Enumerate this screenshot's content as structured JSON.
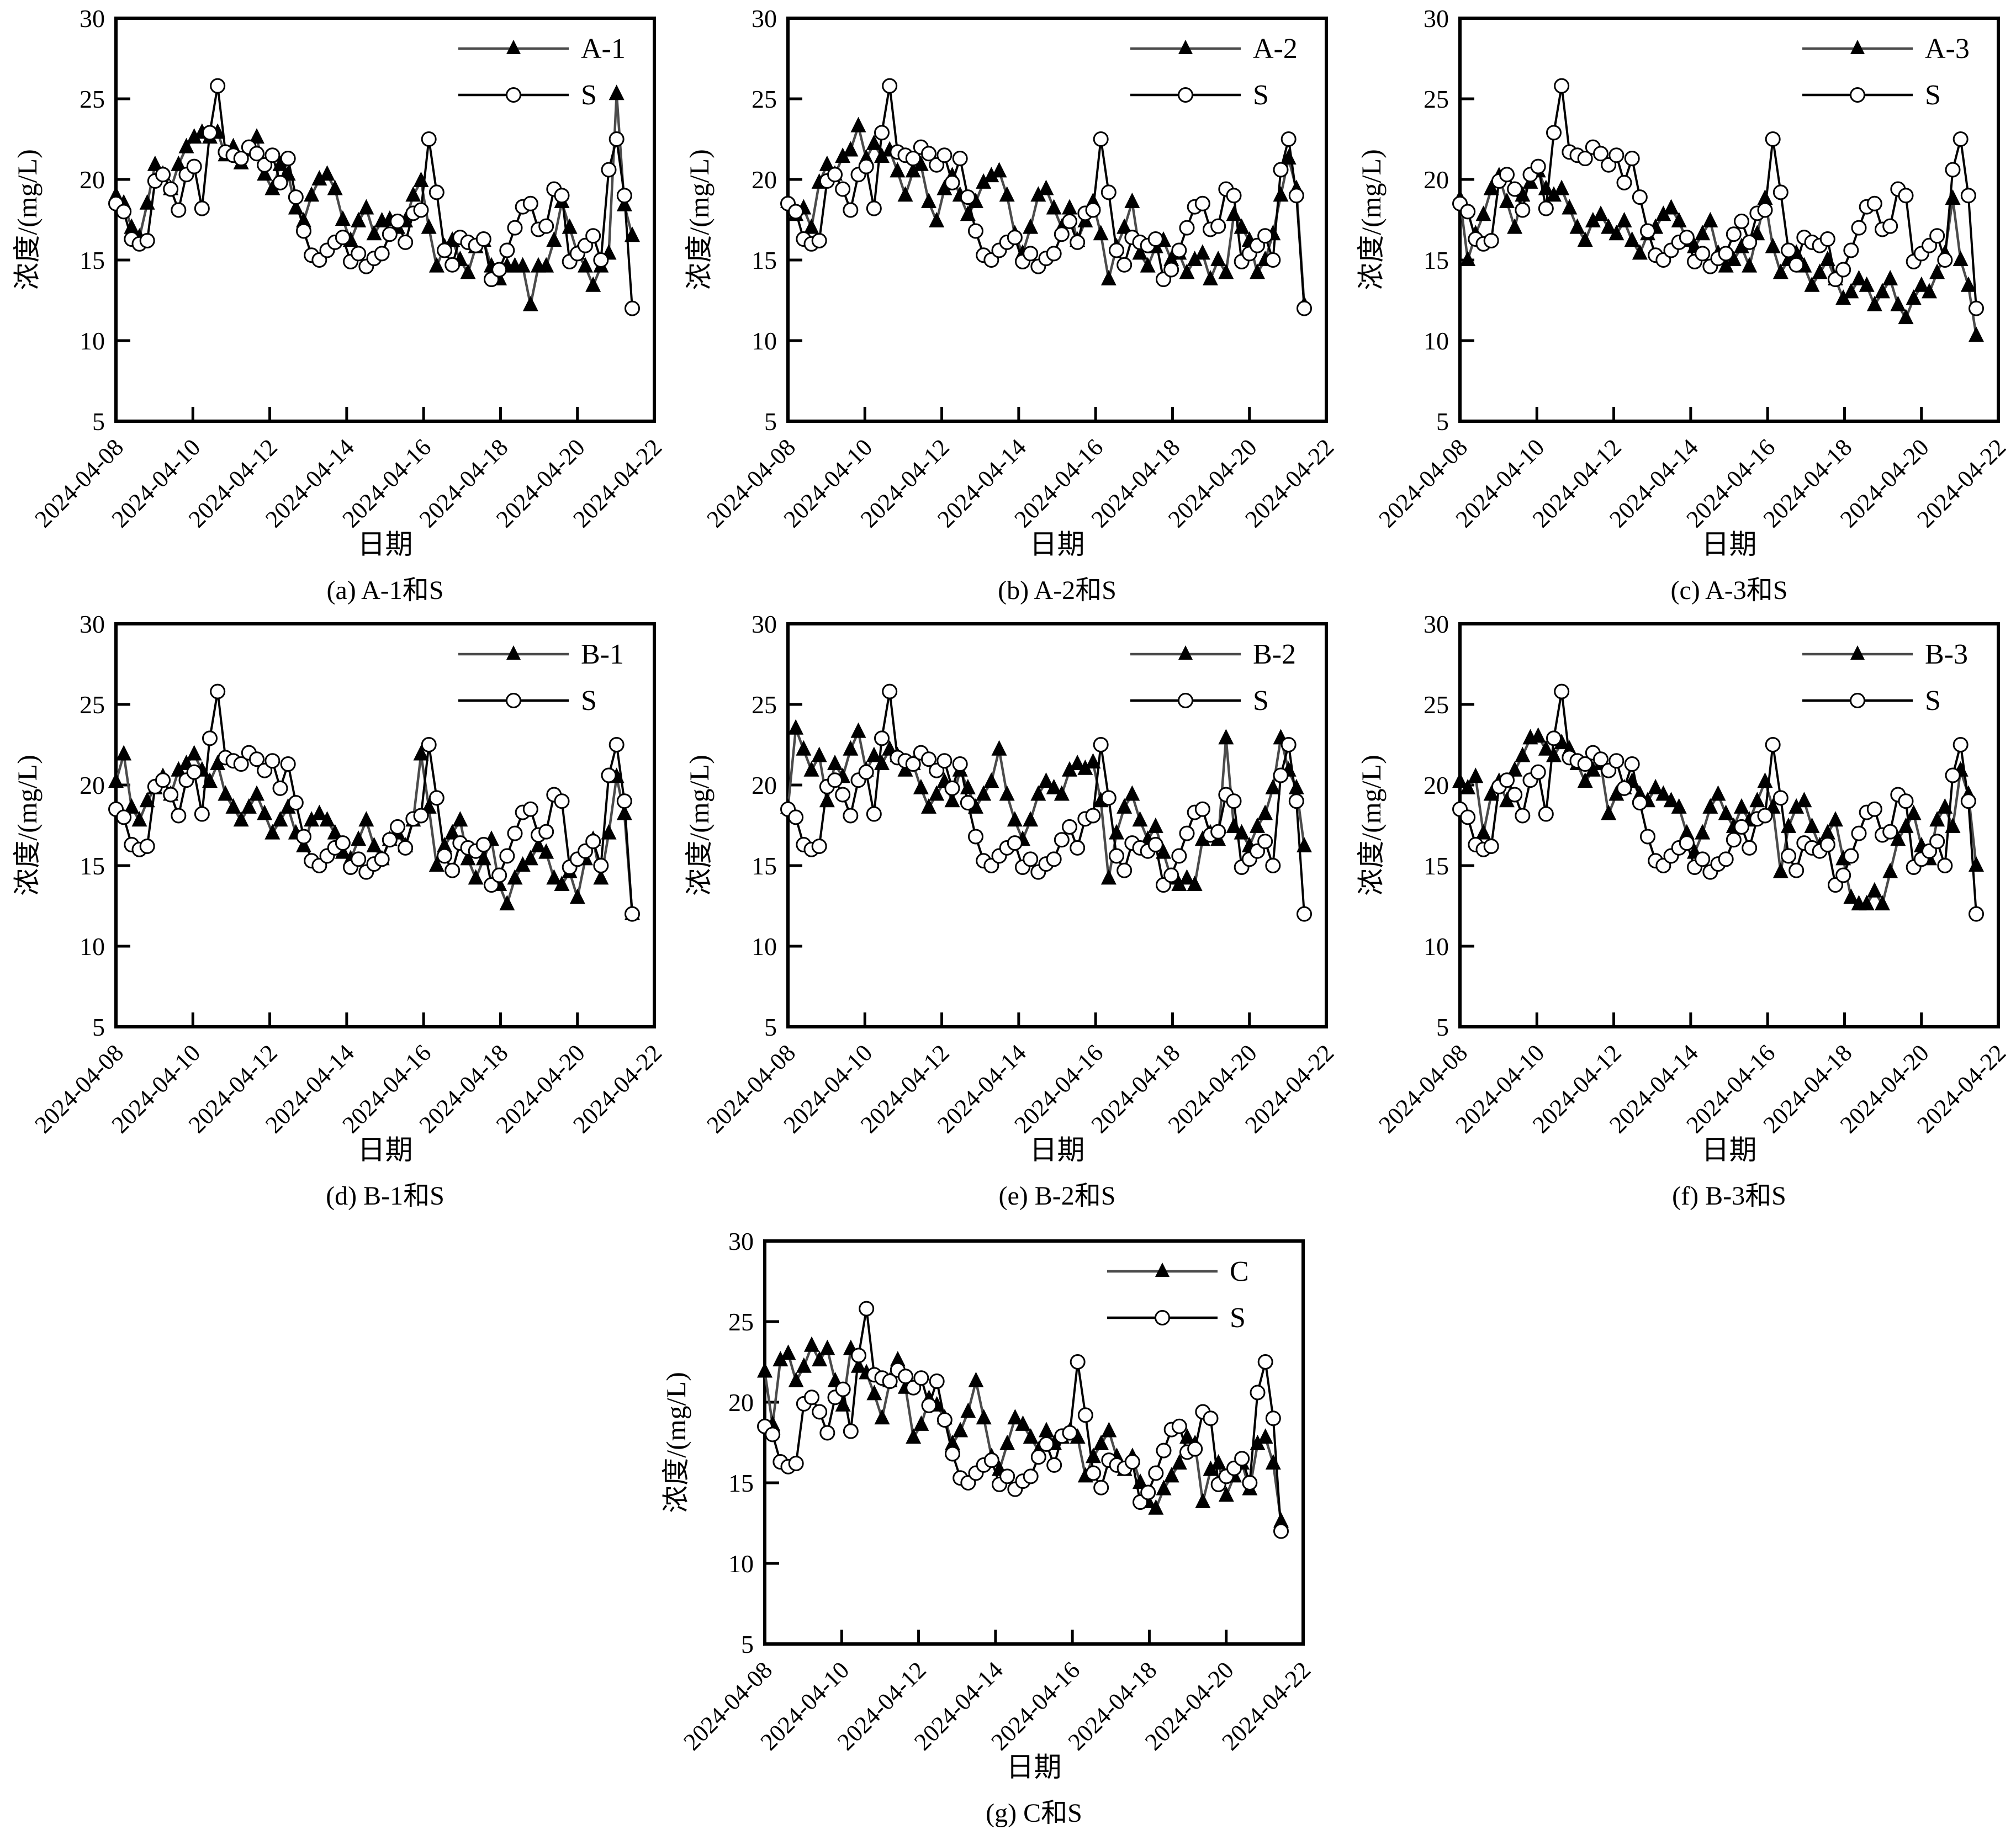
{
  "figure": {
    "background": "#ffffff",
    "ylabel": "浓度/(mg/L)",
    "xlabel": "日期",
    "ylim": [
      5,
      30
    ],
    "y_ticks": [
      30,
      25,
      20,
      15,
      10,
      5
    ],
    "x_tick_labels": [
      "2024-04-08",
      "2024-04-10",
      "2024-04-12",
      "2024-04-14",
      "2024-04-16",
      "2024-04-18",
      "2024-04-20",
      "2024-04-22"
    ],
    "colors": {
      "named_series_line": "#4b4b4b",
      "named_series_marker": "#000000",
      "s_series_line": "#000000",
      "s_series_marker_fill": "#ffffff",
      "s_series_marker_stroke": "#000000",
      "axis": "#000000"
    },
    "legend_position": "top-right",
    "grid": false,
    "shared_series_S": {
      "name": "S",
      "marker": "open-circle",
      "values": [
        18.5,
        18.0,
        16.3,
        16.0,
        16.2,
        19.9,
        20.3,
        19.4,
        18.1,
        20.3,
        20.8,
        18.2,
        22.9,
        25.8,
        21.7,
        21.5,
        21.3,
        22.0,
        21.6,
        20.9,
        21.5,
        19.8,
        21.3,
        18.9,
        16.8,
        15.3,
        15.0,
        15.6,
        16.1,
        16.4,
        14.9,
        15.4,
        14.6,
        15.1,
        15.4,
        16.6,
        17.4,
        16.1,
        17.9,
        18.1,
        22.5,
        19.2,
        15.6,
        14.7,
        16.4,
        16.1,
        15.9,
        16.3,
        13.8,
        14.4,
        15.6,
        17.0,
        18.3,
        18.5,
        16.9,
        17.1,
        19.4,
        19.0,
        14.9,
        15.4,
        15.9,
        16.5,
        15.0,
        20.6,
        22.5,
        19.0,
        12.0
      ]
    }
  },
  "chart_data": [
    {
      "id": "a",
      "type": "line",
      "caption": "(a) A-1和S",
      "xlabel": "日期",
      "ylabel": "浓度/(mg/L)",
      "ylim": [
        5,
        30
      ],
      "x_ticks": [
        "2024-04-08",
        "2024-04-10",
        "2024-04-12",
        "2024-04-14",
        "2024-04-16",
        "2024-04-18",
        "2024-04-20",
        "2024-04-22"
      ],
      "legend": [
        "A-1",
        "S"
      ],
      "series": [
        {
          "name": "A-1",
          "marker": "filled-triangle",
          "values": [
            19.0,
            18.5,
            17.0,
            16.4,
            18.5,
            20.9,
            20.3,
            19.4,
            20.9,
            22.0,
            22.6,
            22.9,
            22.6,
            22.9,
            21.5,
            22.0,
            21.0,
            21.8,
            22.6,
            20.3,
            19.4,
            20.9,
            20.3,
            18.2,
            17.4,
            19.0,
            20.0,
            20.3,
            19.4,
            17.5,
            16.2,
            17.4,
            18.2,
            16.6,
            17.4,
            17.5,
            17.0,
            17.4,
            19.0,
            19.9,
            17.0,
            14.6,
            15.8,
            16.2,
            15.0,
            14.2,
            15.8,
            16.2,
            14.6,
            13.8,
            14.6,
            14.6,
            14.6,
            12.2,
            14.6,
            14.6,
            16.2,
            18.6,
            17.0,
            15.4,
            14.6,
            13.4,
            14.6,
            15.4,
            25.3,
            18.4,
            16.5
          ]
        },
        {
          "name": "S",
          "marker": "open-circle",
          "values_from": "shared_series_S"
        }
      ]
    },
    {
      "id": "b",
      "type": "line",
      "caption": "(b) A-2和S",
      "xlabel": "日期",
      "ylabel": "浓度/(mg/L)",
      "ylim": [
        5,
        30
      ],
      "x_ticks": [
        "2024-04-08",
        "2024-04-10",
        "2024-04-12",
        "2024-04-14",
        "2024-04-16",
        "2024-04-18",
        "2024-04-20",
        "2024-04-22"
      ],
      "legend": [
        "A-2",
        "S"
      ],
      "series": [
        {
          "name": "A-2",
          "marker": "filled-triangle",
          "values": [
            18.6,
            17.8,
            18.2,
            17.0,
            19.8,
            20.9,
            20.3,
            21.4,
            21.8,
            23.3,
            21.3,
            22.2,
            21.4,
            21.8,
            20.5,
            19.0,
            20.5,
            20.9,
            18.6,
            17.4,
            19.4,
            20.2,
            19.0,
            17.8,
            18.6,
            19.8,
            20.2,
            20.5,
            19.0,
            16.6,
            15.4,
            17.0,
            19.0,
            19.4,
            18.2,
            17.0,
            18.2,
            16.2,
            17.4,
            18.6,
            16.6,
            13.8,
            15.8,
            17.0,
            18.6,
            15.4,
            14.6,
            15.8,
            16.2,
            15.0,
            15.4,
            14.2,
            15.0,
            15.4,
            13.8,
            15.0,
            14.2,
            17.8,
            17.0,
            16.2,
            14.2,
            15.0,
            16.6,
            19.0,
            21.3,
            19.4,
            12.2
          ]
        },
        {
          "name": "S",
          "marker": "open-circle",
          "values_from": "shared_series_S"
        }
      ]
    },
    {
      "id": "c",
      "type": "line",
      "caption": "(c) A-3和S",
      "xlabel": "日期",
      "ylabel": "浓度/(mg/L)",
      "ylim": [
        5,
        30
      ],
      "x_ticks": [
        "2024-04-08",
        "2024-04-10",
        "2024-04-12",
        "2024-04-14",
        "2024-04-16",
        "2024-04-18",
        "2024-04-20",
        "2024-04-22"
      ],
      "legend": [
        "A-3",
        "S"
      ],
      "series": [
        {
          "name": "A-3",
          "marker": "filled-triangle",
          "values": [
            18.8,
            15.0,
            16.6,
            17.8,
            19.4,
            20.2,
            18.6,
            17.0,
            19.0,
            19.8,
            20.5,
            19.4,
            19.0,
            19.4,
            18.2,
            17.0,
            16.2,
            17.4,
            17.8,
            17.0,
            16.6,
            17.4,
            16.2,
            15.4,
            16.6,
            17.0,
            17.8,
            18.2,
            17.4,
            16.2,
            15.8,
            16.6,
            17.4,
            15.4,
            14.6,
            15.0,
            15.8,
            14.6,
            16.6,
            18.8,
            15.8,
            14.2,
            15.0,
            15.4,
            14.6,
            13.4,
            14.2,
            15.0,
            13.8,
            12.6,
            13.0,
            13.8,
            13.4,
            12.2,
            13.0,
            13.8,
            12.2,
            11.4,
            12.6,
            13.4,
            13.0,
            14.2,
            15.4,
            18.8,
            15.0,
            13.4,
            10.3
          ]
        },
        {
          "name": "S",
          "marker": "open-circle",
          "values_from": "shared_series_S"
        }
      ]
    },
    {
      "id": "d",
      "type": "line",
      "caption": "(d) B-1和S",
      "xlabel": "日期",
      "ylabel": "浓度/(mg/L)",
      "ylim": [
        5,
        30
      ],
      "x_ticks": [
        "2024-04-08",
        "2024-04-10",
        "2024-04-12",
        "2024-04-14",
        "2024-04-16",
        "2024-04-18",
        "2024-04-20",
        "2024-04-22"
      ],
      "legend": [
        "B-1",
        "S"
      ],
      "series": [
        {
          "name": "B-1",
          "marker": "filled-triangle",
          "values": [
            20.2,
            21.9,
            18.6,
            17.8,
            19.0,
            19.8,
            20.5,
            19.4,
            20.9,
            21.3,
            21.9,
            20.9,
            20.2,
            21.3,
            19.4,
            18.6,
            17.8,
            18.6,
            19.4,
            18.2,
            17.0,
            17.8,
            18.6,
            17.0,
            16.2,
            17.8,
            18.2,
            17.8,
            17.0,
            15.8,
            15.4,
            16.6,
            17.8,
            16.2,
            15.4,
            16.6,
            17.0,
            16.2,
            17.8,
            21.9,
            18.6,
            15.0,
            16.2,
            17.0,
            17.8,
            15.4,
            14.2,
            15.4,
            16.6,
            13.8,
            12.6,
            14.2,
            15.0,
            15.4,
            16.2,
            15.8,
            14.2,
            13.8,
            14.6,
            13.0,
            15.4,
            16.6,
            14.2,
            17.0,
            20.5,
            18.2,
            12.0
          ]
        },
        {
          "name": "S",
          "marker": "open-circle",
          "values_from": "shared_series_S"
        }
      ]
    },
    {
      "id": "e",
      "type": "line",
      "caption": "(e) B-2和S",
      "xlabel": "日期",
      "ylabel": "浓度/(mg/L)",
      "ylim": [
        5,
        30
      ],
      "x_ticks": [
        "2024-04-08",
        "2024-04-10",
        "2024-04-12",
        "2024-04-14",
        "2024-04-16",
        "2024-04-18",
        "2024-04-20",
        "2024-04-22"
      ],
      "legend": [
        "B-2",
        "S"
      ],
      "series": [
        {
          "name": "B-2",
          "marker": "filled-triangle",
          "values": [
            18.6,
            23.5,
            22.2,
            20.9,
            21.8,
            19.0,
            21.3,
            20.5,
            22.2,
            23.3,
            20.9,
            21.8,
            21.3,
            22.2,
            21.8,
            20.9,
            21.3,
            19.8,
            18.6,
            19.4,
            20.2,
            19.0,
            20.9,
            19.8,
            18.6,
            19.4,
            20.2,
            22.2,
            19.4,
            17.8,
            16.6,
            17.8,
            19.4,
            20.2,
            19.8,
            19.4,
            20.9,
            21.3,
            21.0,
            21.4,
            19.0,
            14.2,
            17.0,
            18.6,
            19.4,
            17.8,
            16.6,
            17.4,
            15.8,
            14.2,
            13.8,
            14.2,
            13.8,
            16.6,
            17.0,
            16.6,
            22.9,
            17.4,
            17.0,
            16.2,
            17.4,
            18.2,
            19.8,
            22.9,
            20.9,
            19.8,
            16.2
          ]
        },
        {
          "name": "S",
          "marker": "open-circle",
          "values_from": "shared_series_S"
        }
      ]
    },
    {
      "id": "f",
      "type": "line",
      "caption": "(f) B-3和S",
      "xlabel": "日期",
      "ylabel": "浓度/(mg/L)",
      "ylim": [
        5,
        30
      ],
      "x_ticks": [
        "2024-04-08",
        "2024-04-10",
        "2024-04-12",
        "2024-04-14",
        "2024-04-16",
        "2024-04-18",
        "2024-04-20",
        "2024-04-22"
      ],
      "legend": [
        "B-3",
        "S"
      ],
      "series": [
        {
          "name": "B-3",
          "marker": "filled-triangle",
          "values": [
            20.2,
            19.8,
            20.5,
            17.0,
            19.4,
            20.2,
            19.0,
            20.9,
            21.8,
            22.9,
            23.0,
            22.2,
            21.8,
            22.6,
            22.2,
            21.3,
            20.2,
            20.9,
            21.3,
            18.2,
            19.4,
            19.8,
            20.2,
            19.4,
            19.0,
            19.8,
            19.4,
            19.0,
            18.6,
            17.0,
            15.8,
            17.0,
            18.6,
            19.4,
            18.2,
            17.4,
            18.6,
            17.8,
            19.0,
            20.2,
            18.6,
            14.6,
            17.4,
            18.6,
            19.0,
            17.4,
            16.2,
            17.0,
            17.8,
            15.4,
            13.0,
            12.6,
            12.6,
            13.4,
            12.6,
            14.6,
            16.6,
            17.4,
            18.2,
            16.2,
            15.4,
            17.8,
            18.6,
            17.4,
            20.9,
            19.4,
            15.0
          ]
        },
        {
          "name": "S",
          "marker": "open-circle",
          "values_from": "shared_series_S"
        }
      ]
    },
    {
      "id": "g",
      "type": "line",
      "caption": "(g) C和S",
      "xlabel": "日期",
      "ylabel": "浓度/(mg/L)",
      "ylim": [
        5,
        30
      ],
      "x_ticks": [
        "2024-04-08",
        "2024-04-10",
        "2024-04-12",
        "2024-04-14",
        "2024-04-16",
        "2024-04-18",
        "2024-04-20",
        "2024-04-22"
      ],
      "legend": [
        "C",
        "S"
      ],
      "series": [
        {
          "name": "C",
          "marker": "filled-triangle",
          "values": [
            21.9,
            18.6,
            22.6,
            23.0,
            21.3,
            22.2,
            23.5,
            22.6,
            23.3,
            21.3,
            19.8,
            23.3,
            22.2,
            21.8,
            20.5,
            19.0,
            21.3,
            22.6,
            20.9,
            17.8,
            18.6,
            20.2,
            19.8,
            19.0,
            17.4,
            18.2,
            19.4,
            21.3,
            19.0,
            16.6,
            15.8,
            17.4,
            19.0,
            18.6,
            17.8,
            17.0,
            18.2,
            17.4,
            17.8,
            18.2,
            17.8,
            15.4,
            16.6,
            17.4,
            18.2,
            16.6,
            15.8,
            16.6,
            15.0,
            13.8,
            13.4,
            14.6,
            15.4,
            16.2,
            17.8,
            17.4,
            13.8,
            15.8,
            16.2,
            14.2,
            15.4,
            16.2,
            14.6,
            17.4,
            17.8,
            16.2,
            12.6
          ]
        },
        {
          "name": "S",
          "marker": "open-circle",
          "values_from": "shared_series_S"
        }
      ]
    }
  ]
}
